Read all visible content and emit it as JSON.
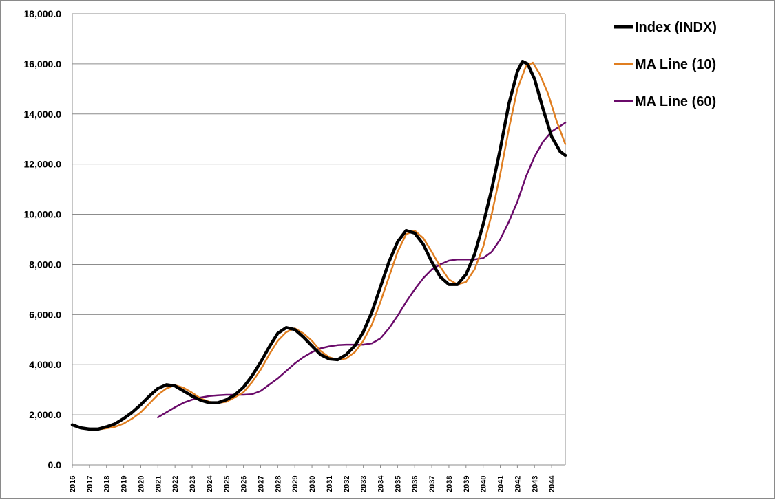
{
  "chart_data": {
    "type": "line",
    "xlabel": "",
    "ylabel": "",
    "ylim": [
      0,
      18000
    ],
    "y_ticks": [
      "0.0",
      "2,000.0",
      "4,000.0",
      "6,000.0",
      "8,000.0",
      "10,000.0",
      "12,000.0",
      "14,000.0",
      "16,000.0",
      "18,000.0"
    ],
    "x_ticks": [
      "2016",
      "2017",
      "2018",
      "2019",
      "2020",
      "2021",
      "2022",
      "2023",
      "2024",
      "2025",
      "2026",
      "2027",
      "2028",
      "2029",
      "2030",
      "2031",
      "2032",
      "2033",
      "2034",
      "2035",
      "2036",
      "2037",
      "2038",
      "2039",
      "2040",
      "2041",
      "2042",
      "2043",
      "2044"
    ],
    "grid": "horizontal",
    "legend_position": "top-right",
    "series": [
      {
        "name": "Index (INDX)",
        "color": "#000000",
        "points": [
          [
            2016.0,
            1600
          ],
          [
            2016.5,
            1480
          ],
          [
            2017.0,
            1430
          ],
          [
            2017.5,
            1430
          ],
          [
            2018.0,
            1520
          ],
          [
            2018.5,
            1640
          ],
          [
            2019.0,
            1850
          ],
          [
            2019.5,
            2100
          ],
          [
            2020.0,
            2400
          ],
          [
            2020.5,
            2750
          ],
          [
            2021.0,
            3050
          ],
          [
            2021.5,
            3200
          ],
          [
            2022.0,
            3150
          ],
          [
            2022.5,
            2950
          ],
          [
            2023.0,
            2750
          ],
          [
            2023.5,
            2580
          ],
          [
            2024.0,
            2480
          ],
          [
            2024.5,
            2480
          ],
          [
            2025.0,
            2600
          ],
          [
            2025.5,
            2800
          ],
          [
            2026.0,
            3100
          ],
          [
            2026.5,
            3550
          ],
          [
            2027.0,
            4100
          ],
          [
            2027.5,
            4700
          ],
          [
            2028.0,
            5250
          ],
          [
            2028.5,
            5480
          ],
          [
            2029.0,
            5400
          ],
          [
            2029.5,
            5100
          ],
          [
            2030.0,
            4750
          ],
          [
            2030.5,
            4400
          ],
          [
            2031.0,
            4230
          ],
          [
            2031.5,
            4200
          ],
          [
            2032.0,
            4400
          ],
          [
            2032.5,
            4750
          ],
          [
            2033.0,
            5300
          ],
          [
            2033.5,
            6100
          ],
          [
            2034.0,
            7100
          ],
          [
            2034.5,
            8100
          ],
          [
            2035.0,
            8900
          ],
          [
            2035.5,
            9350
          ],
          [
            2036.0,
            9250
          ],
          [
            2036.5,
            8800
          ],
          [
            2037.0,
            8100
          ],
          [
            2037.5,
            7500
          ],
          [
            2038.0,
            7200
          ],
          [
            2038.5,
            7200
          ],
          [
            2039.0,
            7600
          ],
          [
            2039.5,
            8400
          ],
          [
            2040.0,
            9600
          ],
          [
            2040.5,
            11000
          ],
          [
            2041.0,
            12600
          ],
          [
            2041.5,
            14400
          ],
          [
            2042.0,
            15700
          ],
          [
            2042.3,
            16100
          ],
          [
            2042.6,
            16000
          ],
          [
            2043.0,
            15400
          ],
          [
            2043.5,
            14200
          ],
          [
            2044.0,
            13100
          ],
          [
            2044.5,
            12500
          ],
          [
            2044.8,
            12350
          ]
        ]
      },
      {
        "name": "MA Line (10)",
        "color": "#E07E20",
        "points": [
          [
            2017.7,
            1430
          ],
          [
            2018.0,
            1460
          ],
          [
            2018.5,
            1520
          ],
          [
            2019.0,
            1650
          ],
          [
            2019.5,
            1850
          ],
          [
            2020.0,
            2100
          ],
          [
            2020.5,
            2450
          ],
          [
            2021.0,
            2800
          ],
          [
            2021.5,
            3050
          ],
          [
            2022.0,
            3180
          ],
          [
            2022.5,
            3080
          ],
          [
            2023.0,
            2880
          ],
          [
            2023.5,
            2650
          ],
          [
            2024.0,
            2520
          ],
          [
            2024.5,
            2470
          ],
          [
            2025.0,
            2520
          ],
          [
            2025.5,
            2700
          ],
          [
            2026.0,
            2900
          ],
          [
            2026.5,
            3300
          ],
          [
            2027.0,
            3800
          ],
          [
            2027.5,
            4400
          ],
          [
            2028.0,
            4950
          ],
          [
            2028.5,
            5300
          ],
          [
            2029.0,
            5450
          ],
          [
            2029.5,
            5250
          ],
          [
            2030.0,
            4950
          ],
          [
            2030.5,
            4550
          ],
          [
            2031.0,
            4300
          ],
          [
            2031.5,
            4200
          ],
          [
            2032.0,
            4250
          ],
          [
            2032.5,
            4500
          ],
          [
            2033.0,
            4950
          ],
          [
            2033.5,
            5600
          ],
          [
            2034.0,
            6500
          ],
          [
            2034.5,
            7500
          ],
          [
            2035.0,
            8500
          ],
          [
            2035.5,
            9200
          ],
          [
            2036.0,
            9350
          ],
          [
            2036.5,
            9050
          ],
          [
            2037.0,
            8500
          ],
          [
            2037.5,
            7900
          ],
          [
            2038.0,
            7400
          ],
          [
            2038.5,
            7200
          ],
          [
            2039.0,
            7300
          ],
          [
            2039.5,
            7800
          ],
          [
            2040.0,
            8700
          ],
          [
            2040.5,
            10000
          ],
          [
            2041.0,
            11600
          ],
          [
            2041.5,
            13400
          ],
          [
            2042.0,
            15000
          ],
          [
            2042.5,
            15900
          ],
          [
            2042.9,
            16050
          ],
          [
            2043.3,
            15600
          ],
          [
            2043.8,
            14800
          ],
          [
            2044.3,
            13700
          ],
          [
            2044.8,
            12800
          ]
        ]
      },
      {
        "name": "MA Line (60)",
        "color": "#6A0A6A",
        "points": [
          [
            2021.0,
            1900
          ],
          [
            2021.5,
            2100
          ],
          [
            2022.0,
            2300
          ],
          [
            2022.5,
            2480
          ],
          [
            2023.0,
            2600
          ],
          [
            2023.5,
            2690
          ],
          [
            2024.0,
            2750
          ],
          [
            2024.5,
            2780
          ],
          [
            2025.0,
            2800
          ],
          [
            2025.5,
            2800
          ],
          [
            2026.0,
            2800
          ],
          [
            2026.5,
            2820
          ],
          [
            2027.0,
            2950
          ],
          [
            2027.5,
            3200
          ],
          [
            2028.0,
            3450
          ],
          [
            2028.5,
            3750
          ],
          [
            2029.0,
            4050
          ],
          [
            2029.5,
            4300
          ],
          [
            2030.0,
            4500
          ],
          [
            2030.5,
            4650
          ],
          [
            2031.0,
            4730
          ],
          [
            2031.5,
            4780
          ],
          [
            2032.0,
            4800
          ],
          [
            2032.5,
            4800
          ],
          [
            2033.0,
            4800
          ],
          [
            2033.5,
            4850
          ],
          [
            2034.0,
            5050
          ],
          [
            2034.5,
            5450
          ],
          [
            2035.0,
            5950
          ],
          [
            2035.5,
            6500
          ],
          [
            2036.0,
            7000
          ],
          [
            2036.5,
            7450
          ],
          [
            2037.0,
            7800
          ],
          [
            2037.5,
            8000
          ],
          [
            2038.0,
            8150
          ],
          [
            2038.5,
            8200
          ],
          [
            2039.0,
            8200
          ],
          [
            2039.5,
            8200
          ],
          [
            2040.0,
            8250
          ],
          [
            2040.5,
            8500
          ],
          [
            2041.0,
            9000
          ],
          [
            2041.5,
            9700
          ],
          [
            2042.0,
            10500
          ],
          [
            2042.5,
            11500
          ],
          [
            2043.0,
            12300
          ],
          [
            2043.5,
            12900
          ],
          [
            2044.0,
            13300
          ],
          [
            2044.8,
            13650
          ]
        ]
      }
    ]
  }
}
